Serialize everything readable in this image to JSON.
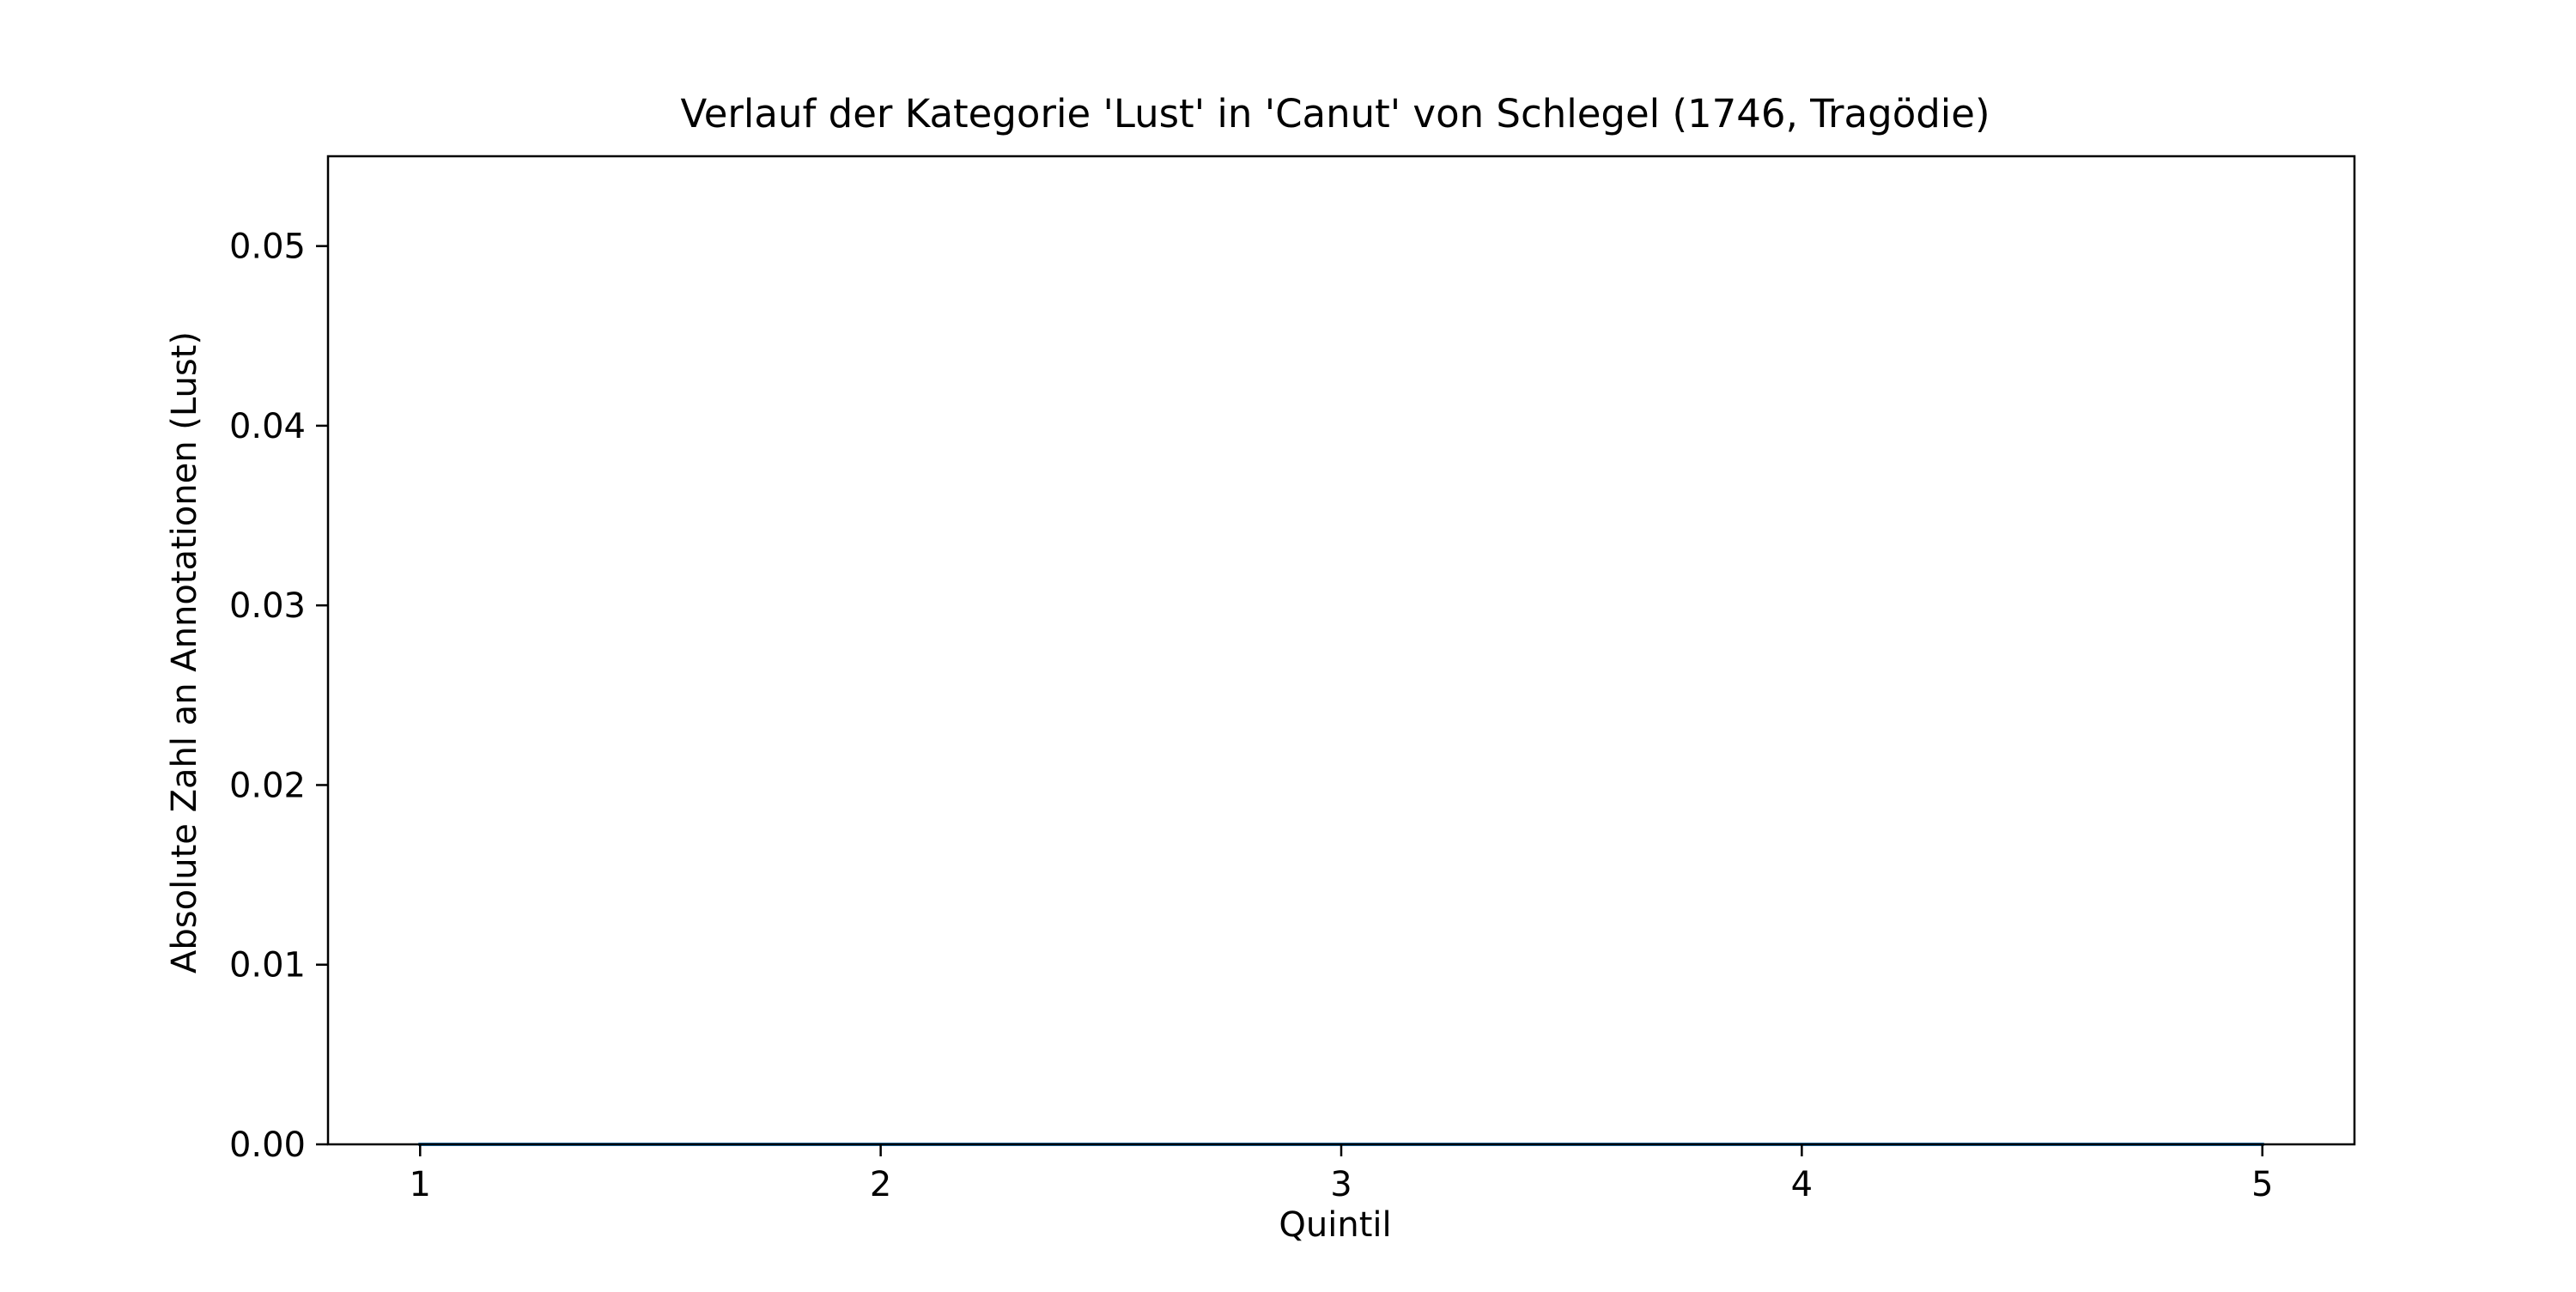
{
  "chart_data": {
    "type": "line",
    "title": "Verlauf der Kategorie 'Lust' in 'Canut' von Schlegel (1746, Tragödie)",
    "xlabel": "Quintil",
    "ylabel": "Absolute Zahl an Annotationen (Lust)",
    "x": [
      1,
      2,
      3,
      4,
      5
    ],
    "series": [
      {
        "values": [
          0,
          0,
          0,
          0,
          0
        ],
        "color": "#1f77b4"
      }
    ],
    "xlim": [
      0.8,
      5.2
    ],
    "ylim": [
      0,
      0.055
    ],
    "xticks": [
      1,
      2,
      3,
      4,
      5
    ],
    "xtick_labels": [
      "1",
      "2",
      "3",
      "4",
      "5"
    ],
    "yticks": [
      0,
      0.01,
      0.02,
      0.03,
      0.04,
      0.05
    ],
    "ytick_labels": [
      "0.00",
      "0.01",
      "0.02",
      "0.03",
      "0.04",
      "0.05"
    ],
    "grid": false,
    "legend": "none"
  }
}
